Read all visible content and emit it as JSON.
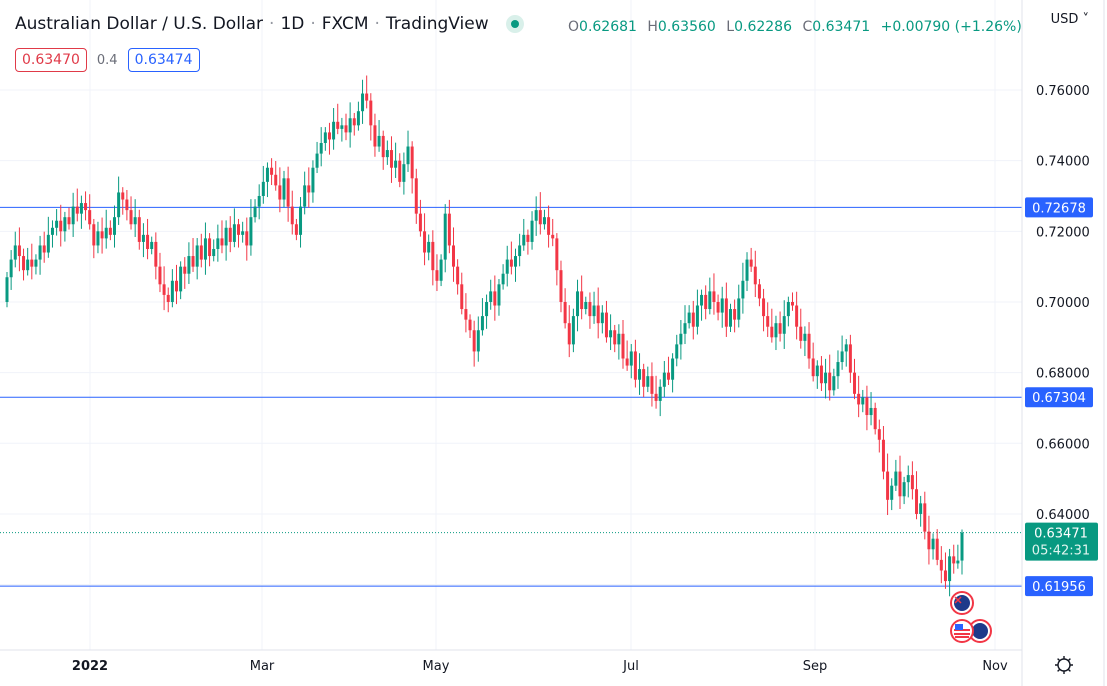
{
  "header": {
    "title": "Australian Dollar / U.S. Dollar",
    "interval": "1D",
    "exchange": "FXCM",
    "source": "TradingView",
    "status_color": "#089981",
    "ohlc": {
      "o_label": "O",
      "o": "0.62681",
      "h_label": "H",
      "h": "0.63560",
      "l_label": "L",
      "l": "0.62286",
      "c_label": "C",
      "c": "0.63471",
      "change": "+0.00790 (+1.26%)"
    },
    "bid": "0.63470",
    "spread": "0.4",
    "ask": "0.63474",
    "currency": "USD"
  },
  "chart_data": {
    "type": "candlestick",
    "x_ticks": [
      "2022",
      "Mar",
      "May",
      "Jul",
      "Sep",
      "Nov"
    ],
    "y_ticks": [
      "0.76000",
      "0.74000",
      "0.72000",
      "0.70000",
      "0.68000",
      "0.66000",
      "0.64000"
    ],
    "ylim": [
      0.605,
      0.769
    ],
    "grid": true,
    "up_color": "#089981",
    "down_color": "#f23645",
    "closes": [
      0.707,
      0.712,
      0.716,
      0.713,
      0.709,
      0.712,
      0.71,
      0.712,
      0.716,
      0.714,
      0.719,
      0.721,
      0.723,
      0.72,
      0.724,
      0.722,
      0.727,
      0.725,
      0.728,
      0.726,
      0.722,
      0.716,
      0.72,
      0.718,
      0.721,
      0.719,
      0.724,
      0.731,
      0.729,
      0.726,
      0.722,
      0.724,
      0.717,
      0.719,
      0.715,
      0.717,
      0.71,
      0.705,
      0.702,
      0.7,
      0.706,
      0.703,
      0.71,
      0.708,
      0.713,
      0.71,
      0.716,
      0.712,
      0.718,
      0.713,
      0.715,
      0.718,
      0.716,
      0.721,
      0.717,
      0.722,
      0.719,
      0.72,
      0.716,
      0.724,
      0.727,
      0.73,
      0.734,
      0.738,
      0.736,
      0.733,
      0.729,
      0.735,
      0.727,
      0.722,
      0.719,
      0.727,
      0.733,
      0.731,
      0.738,
      0.742,
      0.745,
      0.748,
      0.746,
      0.751,
      0.749,
      0.75,
      0.748,
      0.752,
      0.75,
      0.754,
      0.759,
      0.757,
      0.75,
      0.744,
      0.747,
      0.741,
      0.743,
      0.738,
      0.74,
      0.734,
      0.739,
      0.744,
      0.735,
      0.725,
      0.72,
      0.714,
      0.717,
      0.709,
      0.706,
      0.712,
      0.725,
      0.716,
      0.71,
      0.705,
      0.698,
      0.695,
      0.692,
      0.686,
      0.692,
      0.696,
      0.7,
      0.703,
      0.699,
      0.705,
      0.708,
      0.712,
      0.71,
      0.713,
      0.716,
      0.719,
      0.717,
      0.723,
      0.726,
      0.722,
      0.724,
      0.719,
      0.718,
      0.709,
      0.7,
      0.694,
      0.688,
      0.696,
      0.703,
      0.698,
      0.7,
      0.696,
      0.699,
      0.694,
      0.697,
      0.69,
      0.692,
      0.688,
      0.691,
      0.684,
      0.682,
      0.686,
      0.678,
      0.681,
      0.676,
      0.679,
      0.674,
      0.672,
      0.676,
      0.68,
      0.678,
      0.684,
      0.688,
      0.691,
      0.694,
      0.697,
      0.693,
      0.699,
      0.702,
      0.698,
      0.703,
      0.7,
      0.697,
      0.701,
      0.693,
      0.698,
      0.695,
      0.701,
      0.706,
      0.712,
      0.71,
      0.705,
      0.701,
      0.696,
      0.693,
      0.69,
      0.694,
      0.691,
      0.696,
      0.7,
      0.699,
      0.693,
      0.689,
      0.691,
      0.684,
      0.679,
      0.682,
      0.677,
      0.68,
      0.675,
      0.679,
      0.683,
      0.686,
      0.688,
      0.68,
      0.674,
      0.671,
      0.673,
      0.668,
      0.67,
      0.664,
      0.661,
      0.652,
      0.644,
      0.648,
      0.652,
      0.645,
      0.649,
      0.651,
      0.647,
      0.64,
      0.643,
      0.635,
      0.63,
      0.633,
      0.627,
      0.624,
      0.621,
      0.628,
      0.626,
      0.6268,
      0.63471
    ],
    "last_candle": {
      "open": 0.62681,
      "high": 0.6356,
      "low": 0.62286,
      "close": 0.63471
    },
    "horizontal_lines": [
      {
        "price": 0.72678,
        "label": "0.72678",
        "color": "#2962ff"
      },
      {
        "price": 0.67304,
        "label": "0.67304",
        "color": "#2962ff"
      },
      {
        "price": 0.61956,
        "label": "0.61956",
        "color": "#2962ff"
      }
    ],
    "last_price": {
      "price": 0.63471,
      "label": "0.63471",
      "countdown": "05:42:31",
      "color": "#089981"
    }
  }
}
